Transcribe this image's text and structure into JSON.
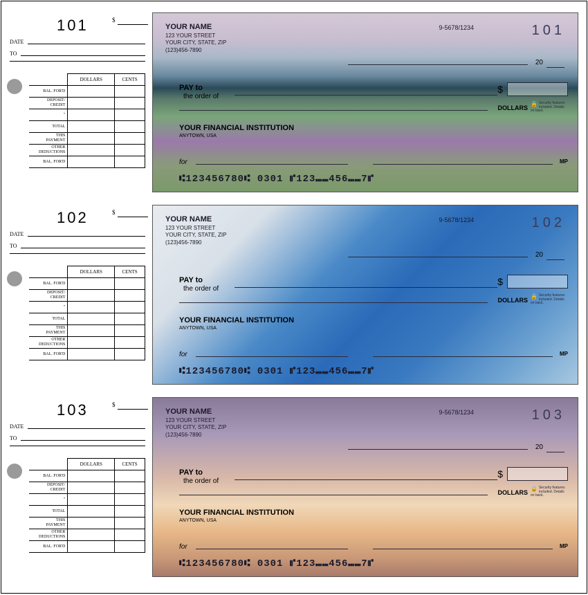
{
  "checks": [
    {
      "stub_no": "101",
      "check_no": "101",
      "bg_class": "bg1"
    },
    {
      "stub_no": "102",
      "check_no": "102",
      "bg_class": "bg2"
    },
    {
      "stub_no": "103",
      "check_no": "103",
      "bg_class": "bg3"
    }
  ],
  "stub": {
    "date_label": "DATE",
    "to_label": "TO",
    "dollars_hdr": "DOLLARS",
    "cents_hdr": "CENTS",
    "rows": [
      "BAL. FOR'D",
      "DEPOSIT/\nCREDIT",
      "\"",
      "TOTAL",
      "THIS\nPAYMENT",
      "OTHER\nDEDUCTIONS",
      "BAL. FOR'D"
    ]
  },
  "check": {
    "name": "YOUR NAME",
    "street": "123 YOUR STREET",
    "city": "YOUR CITY, STATE, ZIP",
    "phone": "(123)456-7890",
    "route": "9-5678/1234",
    "twenty": "20",
    "pay": "PAY to",
    "order": "the order of",
    "dollar_sign": "$",
    "dollars": "DOLLARS",
    "security": "Security features included. Details on back.",
    "bank": "YOUR FINANCIAL INSTITUTION",
    "bank_town": "ANYTOWN, USA",
    "for": "for",
    "mp": "MP",
    "micr": "⑆123456780⑆  0301  ⑈123⑉⑉456⑉⑉7⑈"
  },
  "colors": {
    "border": "#000000",
    "hole": "#9a9a9a"
  }
}
